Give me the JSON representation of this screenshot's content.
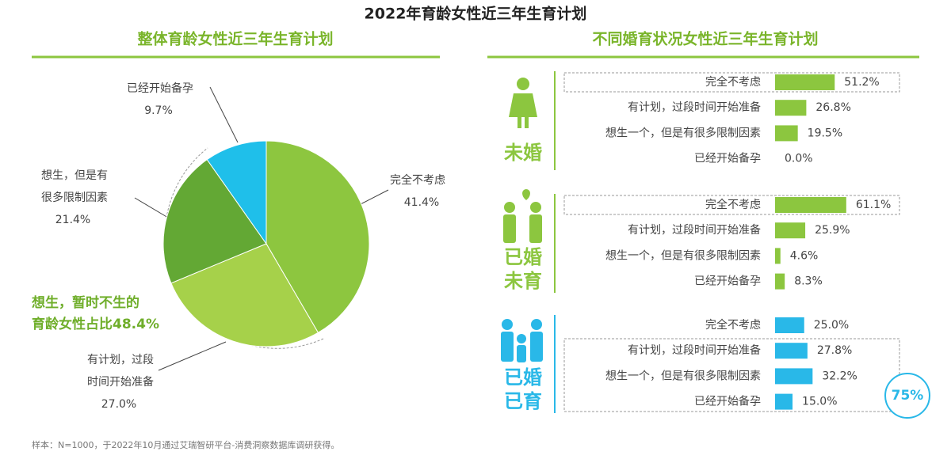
{
  "title": "2022年育龄女性近三年生育计划",
  "note": "样本：N=1000，于2022年10月通过艾瑞智研平台-消费洞察数据库调研获得。",
  "chart_data": [
    {
      "type": "pie",
      "title": "整体育龄女性近三年生育计划",
      "categories": [
        "完全不考虑",
        "有计划，过段\n时间开始准备",
        "想生，但是有\n很多限制因素",
        "已经开始备孕"
      ],
      "values": [
        41.4,
        27.0,
        21.4,
        9.7
      ],
      "value_labels": [
        "41.4%",
        "27.0%",
        "21.4%",
        "9.7%"
      ],
      "colors": [
        "#8dc63f",
        "#a6d14a",
        "#63a834",
        "#1fbfea"
      ],
      "annotation": "想生，暂时不生的\n育龄女性占比48.4%"
    },
    {
      "type": "bar",
      "orientation": "horizontal",
      "title": "不同婚育状况女性近三年生育计划",
      "categories": [
        "完全不考虑",
        "有计划，过段时间开始准备",
        "想生一个，但是有很多限制因素",
        "已经开始备孕"
      ],
      "series": [
        {
          "name": "未婚",
          "color": "#8cc63f",
          "values": [
            51.2,
            26.8,
            19.5,
            0.0
          ],
          "value_labels": [
            "51.2%",
            "26.8%",
            "19.5%",
            "0.0%"
          ]
        },
        {
          "name": "已婚\n未育",
          "color": "#8cc63f",
          "values": [
            61.1,
            25.9,
            4.6,
            8.3
          ],
          "value_labels": [
            "61.1%",
            "25.9%",
            "4.6%",
            "8.3%"
          ]
        },
        {
          "name": "已婚\n已育",
          "color": "#29b8e8",
          "values": [
            25.0,
            27.8,
            32.2,
            15.0
          ],
          "value_labels": [
            "25.0%",
            "27.8%",
            "32.2%",
            "15.0%"
          ]
        }
      ],
      "annotation": "75%"
    }
  ]
}
